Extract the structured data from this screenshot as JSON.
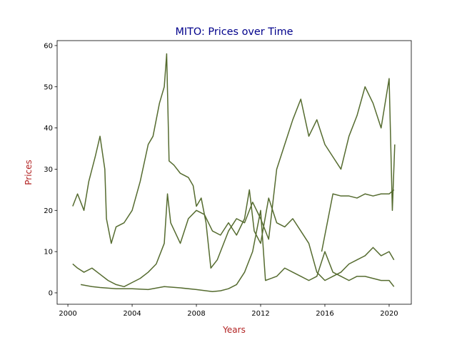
{
  "chart_data": {
    "type": "line",
    "title": "MITO: Prices over Time",
    "x_label": "Years",
    "y_label": "Prices",
    "title_color": "#00008b",
    "label_color": "#b22222",
    "xlim": [
      1999.33,
      2021.38
    ],
    "ylim": [
      -2.77,
      61.2
    ],
    "xticks": [
      2000,
      2004,
      2008,
      2012,
      2016,
      2020
    ],
    "yticks": [
      0,
      10,
      20,
      30,
      40,
      50,
      60
    ],
    "grid": false,
    "series": [
      {
        "color": "#556b2f",
        "x": [
          2000.3,
          2000.6,
          2001,
          2001.3,
          2001.7,
          2002,
          2002.3,
          2002.4,
          2002.7,
          2003,
          2003.5,
          2004,
          2004.5,
          2005,
          2005.3,
          2005.7,
          2006,
          2006.15,
          2006.3,
          2006.6,
          2007,
          2007.5,
          2007.8,
          2008,
          2008.3,
          2008.6,
          2008.9,
          2009.3,
          2010,
          2010.5,
          2011,
          2011.5,
          2012,
          2012.5,
          2013,
          2013.5,
          2014,
          2014.5,
          2015,
          2015.5,
          2016,
          2016.5,
          2017,
          2017.5,
          2018,
          2018.5,
          2019,
          2019.5,
          2020,
          2020.2,
          2020.35
        ],
        "values": [
          21,
          24,
          20,
          27,
          33,
          38,
          30,
          18,
          12,
          16,
          17,
          20,
          27,
          36,
          38,
          46,
          50,
          58,
          32,
          31,
          29,
          28,
          26,
          21,
          23,
          17,
          6,
          8,
          15,
          18,
          17,
          22,
          18,
          13,
          30,
          36,
          42,
          47,
          38,
          42,
          36,
          33,
          30,
          38,
          43,
          50,
          46,
          40,
          52,
          20,
          36
        ]
      },
      {
        "color": "#556b2f",
        "x": [
          2000.3,
          2000.6,
          2001,
          2001.5,
          2002,
          2002.5,
          2003,
          2003.5,
          2004,
          2004.5,
          2005,
          2005.5,
          2006,
          2006.2,
          2006.4,
          2007,
          2007.5,
          2008,
          2008.5,
          2009,
          2009.5,
          2010,
          2010.5,
          2011,
          2011.3,
          2011.6,
          2012,
          2012.5,
          2013,
          2013.5,
          2014,
          2014.5,
          2015,
          2015.5,
          2016,
          2016.5,
          2017,
          2017.5,
          2018,
          2018.5,
          2019,
          2019.5,
          2020,
          2020.3
        ],
        "values": [
          7,
          6,
          5,
          6,
          4.5,
          3,
          2,
          1.5,
          2.5,
          3.5,
          5,
          7,
          12,
          24,
          17,
          12,
          18,
          20,
          19,
          15,
          14,
          17,
          14,
          18,
          25,
          15,
          12,
          23,
          17,
          16,
          18,
          15,
          12,
          5,
          3,
          4,
          5,
          7,
          8,
          9,
          11,
          9,
          10,
          8
        ]
      },
      {
        "color": "#556b2f",
        "x": [
          2000.8,
          2001.5,
          2002,
          2003,
          2004,
          2005,
          2006,
          2007,
          2008,
          2009,
          2009.5,
          2010,
          2010.5,
          2011,
          2011.5,
          2012,
          2012.3,
          2013,
          2013.5,
          2014,
          2014.5,
          2015,
          2015.5,
          2016,
          2016.5,
          2017,
          2017.5,
          2018,
          2018.5,
          2019,
          2019.5,
          2020,
          2020.3
        ],
        "values": [
          2,
          1.5,
          1.3,
          1,
          1,
          0.8,
          1.5,
          1.2,
          0.8,
          0.3,
          0.5,
          1,
          2,
          5,
          10,
          20,
          3,
          4,
          6,
          5,
          4,
          3,
          4,
          10,
          5,
          4,
          3,
          4,
          4,
          3.5,
          3,
          3,
          1.5
        ]
      },
      {
        "color": "#556b2f",
        "x": [
          2015.8,
          2016.2,
          2016.5,
          2017,
          2017.5,
          2018,
          2018.5,
          2019,
          2019.5,
          2020,
          2020.3
        ],
        "values": [
          10,
          18,
          24,
          23.5,
          23.5,
          23,
          24,
          23.5,
          24,
          24,
          25
        ]
      }
    ]
  }
}
